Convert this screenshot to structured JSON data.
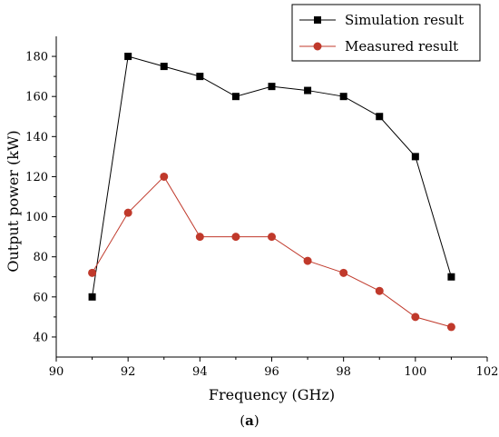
{
  "caption": {
    "open": "(",
    "letter": "a",
    "close": ")"
  },
  "chart_data": {
    "type": "line",
    "xlabel": "Frequency (GHz)",
    "ylabel": "Output power (kW)",
    "xlim": [
      90,
      102
    ],
    "ylim": [
      30,
      190
    ],
    "xticks": [
      90,
      92,
      94,
      96,
      98,
      100,
      102
    ],
    "yticks": [
      40,
      60,
      80,
      100,
      120,
      140,
      160,
      180
    ],
    "legend_position": "top-right",
    "series": [
      {
        "name": "Simulation result",
        "color": "#000000",
        "marker": "square",
        "x": [
          91,
          92,
          93,
          94,
          95,
          96,
          97,
          98,
          99,
          100,
          101
        ],
        "y": [
          60,
          180,
          175,
          170,
          160,
          165,
          163,
          160,
          150,
          130,
          70
        ]
      },
      {
        "name": "Measured result",
        "color": "#c0392b",
        "marker": "circle",
        "x": [
          91,
          92,
          93,
          94,
          95,
          96,
          97,
          98,
          99,
          100,
          101
        ],
        "y": [
          72,
          102,
          120,
          90,
          90,
          90,
          78,
          72,
          63,
          50,
          45
        ]
      }
    ]
  }
}
